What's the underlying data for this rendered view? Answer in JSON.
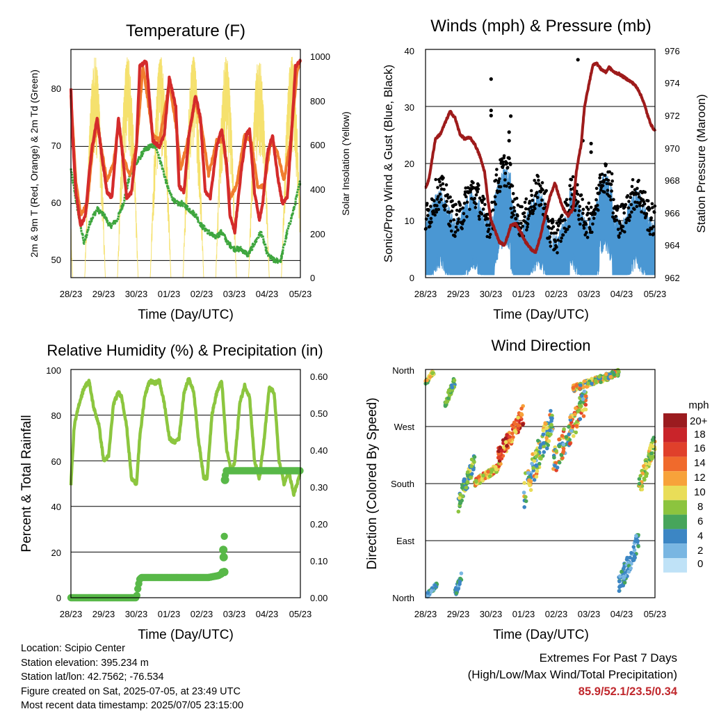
{
  "x_ticks": [
    "28/23",
    "29/23",
    "30/23",
    "01/23",
    "02/23",
    "03/23",
    "04/23",
    "05/23"
  ],
  "x_label": "Time (Day/UTC)",
  "colors": {
    "temp2m": "#d42b2b",
    "temp9m": "#f07d2e",
    "dewpoint": "#3ea63e",
    "solar": "#f5e16e",
    "sonic": "#4a97d3",
    "gust": "#000000",
    "pressure": "#9e1b1b",
    "rh": "#8cc63f",
    "rain": "#58b848"
  },
  "panels": {
    "temperature": {
      "title": "Temperature (F)",
      "ylabel_left": "2m & 9m T (Red, Orange) & 2m Td (Green)",
      "ylabel_right": "Solar Insolation (Yellow)",
      "left_ticks": [
        "50",
        "60",
        "70",
        "80"
      ],
      "right_ticks": [
        "0",
        "200",
        "400",
        "600",
        "800",
        "1000"
      ]
    },
    "winds": {
      "title": "Winds (mph) & Pressure (mb)",
      "ylabel_left": "Sonic/Prop Wind & Gust (Blue, Black)",
      "ylabel_right": "Station Pressure (Maroon)",
      "left_ticks": [
        "0",
        "10",
        "20",
        "30",
        "40"
      ],
      "right_ticks": [
        "962",
        "964",
        "966",
        "968",
        "970",
        "972",
        "974",
        "976"
      ]
    },
    "humidity": {
      "title": "Relative Humidity (%) & Precipitation (in)",
      "ylabel_left": "Percent & Total Rainfall",
      "left_ticks": [
        "0",
        "20",
        "40",
        "60",
        "80",
        "100"
      ],
      "right_ticks": [
        "0.00",
        "0.10",
        "0.20",
        "0.30",
        "0.40",
        "0.50",
        "0.60"
      ]
    },
    "direction": {
      "title": "Wind Direction",
      "ylabel_left": "Direction (Colored By Speed)",
      "left_ticks": [
        "North",
        "East",
        "South",
        "West",
        "North"
      ],
      "legend_title": "mph",
      "legend_labels": [
        "20+",
        "18",
        "16",
        "14",
        "12",
        "10",
        "8",
        "6",
        "4",
        "2",
        "0"
      ],
      "legend_colors": [
        "#9b1b1f",
        "#c9242a",
        "#e0402b",
        "#f06a2c",
        "#f7a23a",
        "#e9dd58",
        "#8cc43e",
        "#47a55b",
        "#3c86c4",
        "#79b6e2",
        "#bfe2f7"
      ]
    }
  },
  "chart_data": [
    {
      "type": "line",
      "title": "Temperature (F)",
      "xlabel": "Time (Day/UTC)",
      "ylabel": "2m & 9m T (Red, Orange) & 2m Td (Green)",
      "ylabel_right": "Solar Insolation (Yellow)",
      "x_days": [
        0,
        7
      ],
      "ylim": [
        47,
        87
      ],
      "ylim_right": [
        0,
        1030
      ],
      "series": [
        {
          "name": "2m T",
          "color": "#d42b2b",
          "x": [
            0,
            0.05,
            0.15,
            0.3,
            0.45,
            0.55,
            0.65,
            0.8,
            0.95,
            1.1,
            1.25,
            1.45,
            1.55,
            1.7,
            1.85,
            2.0,
            2.1,
            2.3,
            2.5,
            2.7,
            2.85,
            3.0,
            3.2,
            3.3,
            3.45,
            3.6,
            3.8,
            3.95,
            4.1,
            4.25,
            4.45,
            4.6,
            4.75,
            4.85,
            5.0,
            5.2,
            5.35,
            5.45,
            5.6,
            5.75,
            5.85,
            6.0,
            6.15,
            6.3,
            6.45,
            6.6,
            6.75,
            6.85,
            7.0
          ],
          "y": [
            80,
            72,
            62,
            56,
            58,
            65,
            70,
            75,
            68,
            62,
            61,
            75,
            70,
            61,
            62,
            70,
            84,
            85,
            71,
            70,
            72,
            82,
            77,
            63,
            62,
            72,
            79,
            75,
            62,
            61,
            70,
            73,
            67,
            58,
            55,
            66,
            72,
            73,
            62,
            57,
            60,
            69,
            72,
            65,
            60,
            61,
            74,
            84,
            85
          ]
        },
        {
          "name": "9m T",
          "color": "#f07d2e",
          "x": [
            0,
            0.15,
            0.3,
            0.5,
            0.65,
            0.8,
            0.95,
            1.1,
            1.3,
            1.45,
            1.6,
            1.8,
            2.0,
            2.2,
            2.5,
            2.7,
            3.0,
            3.2,
            3.35,
            3.6,
            3.8,
            4.0,
            4.2,
            4.45,
            4.65,
            4.85,
            5.05,
            5.3,
            5.5,
            5.7,
            5.9,
            6.1,
            6.3,
            6.5,
            6.7,
            6.9,
            7.0
          ],
          "y": [
            79,
            64,
            58,
            60,
            69,
            74,
            69,
            64,
            67,
            74,
            68,
            65,
            70,
            84,
            72,
            71,
            81,
            74,
            66,
            72,
            78,
            73,
            65,
            71,
            71,
            61,
            63,
            72,
            71,
            63,
            63,
            71,
            69,
            64,
            71,
            83,
            85
          ]
        },
        {
          "name": "2m Td",
          "color": "#3ea63e",
          "x": [
            0,
            0.2,
            0.4,
            0.6,
            0.8,
            1.0,
            1.2,
            1.4,
            1.6,
            1.8,
            2.0,
            2.2,
            2.4,
            2.6,
            2.8,
            3.0,
            3.2,
            3.4,
            3.6,
            3.8,
            4.0,
            4.2,
            4.4,
            4.6,
            4.8,
            5.0,
            5.2,
            5.4,
            5.6,
            5.8,
            6.0,
            6.2,
            6.4,
            6.6,
            6.8,
            7.0
          ],
          "y": [
            66,
            59,
            53,
            57,
            59,
            58,
            56,
            57,
            60,
            65,
            67,
            69,
            70,
            70,
            66,
            62,
            60,
            60,
            59,
            58,
            56,
            55,
            54,
            55,
            53,
            52,
            52,
            51,
            53,
            55,
            51,
            50,
            50,
            55,
            59,
            64
          ]
        },
        {
          "name": "Solar Insolation",
          "axis": "right",
          "color": "#f5e16e",
          "days": 7,
          "peak": 1000
        }
      ]
    },
    {
      "type": "line",
      "title": "Winds (mph) & Pressure (mb)",
      "xlabel": "Time (Day/UTC)",
      "ylabel": "Sonic/Prop Wind & Gust (Blue, Black)",
      "ylabel_right": "Station Pressure (Maroon)",
      "ylim": [
        0,
        40
      ],
      "ylim_right": [
        962,
        976
      ],
      "series": [
        {
          "name": "Station Pressure",
          "axis": "right",
          "color": "#9e1b1b",
          "x": [
            0,
            0.1,
            0.3,
            0.45,
            0.6,
            0.75,
            0.9,
            1.05,
            1.2,
            1.35,
            1.5,
            1.65,
            1.8,
            1.9,
            2.0,
            2.1,
            2.25,
            2.4,
            2.5,
            2.6,
            2.75,
            2.9,
            3.05,
            3.2,
            3.35,
            3.5,
            3.65,
            3.8,
            3.95,
            4.1,
            4.2,
            4.35,
            4.5,
            4.6,
            4.75,
            4.85,
            5.0,
            5.1,
            5.2,
            5.35,
            5.5,
            5.6,
            5.75,
            5.9,
            6.05,
            6.2,
            6.35,
            6.5,
            6.65,
            6.8,
            6.9,
            7.0
          ],
          "y": [
            967.5,
            968,
            970.5,
            970.8,
            971.5,
            972.2,
            971.8,
            970.8,
            970.5,
            970.6,
            970.2,
            969.5,
            968.5,
            966.8,
            965.5,
            965,
            964.2,
            964,
            964.5,
            965.2,
            965.3,
            964.8,
            964.2,
            963.8,
            963.5,
            964.5,
            965.8,
            967,
            967.8,
            966.8,
            966.2,
            965.8,
            966.2,
            968.5,
            970.2,
            972.5,
            974,
            975,
            975.2,
            974.8,
            974.6,
            974.9,
            974.6,
            974.5,
            974.3,
            974.1,
            973.9,
            973.5,
            972.8,
            971.8,
            971.3,
            971
          ]
        },
        {
          "name": "Sonic/Prop Wind",
          "color": "#4a97d3",
          "style": "scatter"
        },
        {
          "name": "Gust",
          "color": "#000000",
          "style": "scatter"
        }
      ]
    },
    {
      "type": "line",
      "title": "Relative Humidity (%) & Precipitation (in)",
      "xlabel": "Time (Day/UTC)",
      "ylabel": "Percent & Total Rainfall",
      "ylim": [
        0,
        100
      ],
      "ylim_right": [
        0,
        0.62
      ],
      "series": [
        {
          "name": "Relative Humidity",
          "color": "#8cc63f",
          "x": [
            0,
            0.1,
            0.25,
            0.4,
            0.55,
            0.7,
            0.85,
            1.0,
            1.15,
            1.3,
            1.45,
            1.55,
            1.7,
            1.85,
            2.0,
            2.1,
            2.25,
            2.4,
            2.55,
            2.7,
            2.85,
            3.0,
            3.15,
            3.3,
            3.45,
            3.6,
            3.75,
            3.9,
            4.05,
            4.15,
            4.3,
            4.45,
            4.6,
            4.75,
            4.9,
            5.0,
            5.15,
            5.3,
            5.45,
            5.6,
            5.75,
            5.9,
            6.05,
            6.2,
            6.35,
            6.5,
            6.65,
            6.8,
            6.9,
            7.0
          ],
          "y": [
            50,
            75,
            85,
            92,
            95,
            83,
            76,
            60,
            62,
            85,
            90,
            88,
            75,
            52,
            50,
            70,
            88,
            95,
            94,
            95,
            85,
            70,
            68,
            70,
            90,
            96,
            90,
            68,
            53,
            52,
            80,
            90,
            95,
            65,
            55,
            60,
            85,
            93,
            88,
            60,
            52,
            70,
            92,
            90,
            60,
            50,
            55,
            45,
            50,
            55
          ]
        },
        {
          "name": "Total Rainfall",
          "axis": "right",
          "color": "#58b848",
          "x": [
            0,
            2.0,
            2.05,
            2.1,
            2.15,
            4.2,
            4.5,
            4.6,
            4.62,
            4.65,
            4.67,
            4.7,
            4.72,
            4.75,
            4.8,
            7.0
          ],
          "y": [
            0,
            0,
            0.03,
            0.05,
            0.055,
            0.055,
            0.06,
            0.065,
            0.07,
            0.13,
            0.09,
            0.32,
            0.345,
            0.345,
            0.345,
            0.345
          ]
        }
      ]
    },
    {
      "type": "scatter",
      "title": "Wind Direction",
      "xlabel": "Time (Day/UTC)",
      "ylabel": "Direction (Colored By Speed)",
      "y_categories": [
        "North",
        "East",
        "South",
        "West",
        "North"
      ],
      "color_scale": {
        "title": "mph",
        "labels": [
          "20+",
          "18",
          "16",
          "14",
          "12",
          "10",
          "8",
          "6",
          "4",
          "2",
          "0"
        ]
      },
      "clusters": [
        {
          "x": [
            0.0,
            0.25
          ],
          "dir": [
            335,
            360
          ],
          "speed": [
            6,
            14
          ]
        },
        {
          "x": [
            0.05,
            0.35
          ],
          "dir": [
            0,
            25
          ],
          "speed": [
            2,
            6
          ]
        },
        {
          "x": [
            0.6,
            0.9
          ],
          "dir": [
            300,
            350
          ],
          "speed": [
            4,
            9
          ]
        },
        {
          "x": [
            0.9,
            1.1
          ],
          "dir": [
            0,
            40
          ],
          "speed": [
            2,
            6
          ]
        },
        {
          "x": [
            1.0,
            1.5
          ],
          "dir": [
            135,
            230
          ],
          "speed": [
            3,
            10
          ]
        },
        {
          "x": [
            1.5,
            2.3
          ],
          "dir": [
            175,
            215
          ],
          "speed": [
            7,
            16
          ]
        },
        {
          "x": [
            2.2,
            3.0
          ],
          "dir": [
            205,
            305
          ],
          "speed": [
            10,
            20
          ]
        },
        {
          "x": [
            3.0,
            3.9
          ],
          "dir": [
            140,
            310
          ],
          "speed": [
            2,
            14
          ]
        },
        {
          "x": [
            3.9,
            4.9
          ],
          "dir": [
            190,
            335
          ],
          "speed": [
            2,
            16
          ]
        },
        {
          "x": [
            4.5,
            5.9
          ],
          "dir": [
            325,
            360
          ],
          "speed": [
            4,
            14
          ]
        },
        {
          "x": [
            5.9,
            6.5
          ],
          "dir": [
            0,
            110
          ],
          "speed": [
            2,
            6
          ]
        },
        {
          "x": [
            6.5,
            7.0
          ],
          "dir": [
            155,
            260
          ],
          "speed": [
            6,
            12
          ]
        }
      ]
    }
  ],
  "footer": {
    "location": "Location: Scipio Center",
    "elevation": "Station elevation: 395.234 m",
    "latlon": "Station lat/lon: 42.7562; -76.534",
    "created": "Figure created on Sat, 2025-07-05, at 23:49 UTC",
    "latest": "Most recent data timestamp: 2025/07/05 23:15:00",
    "extremes_title": "Extremes For Past 7 Days",
    "extremes_subtitle": "(High/Low/Max Wind/Total Precipitation)",
    "extremes_values": "85.9/52.1/23.5/0.34"
  }
}
